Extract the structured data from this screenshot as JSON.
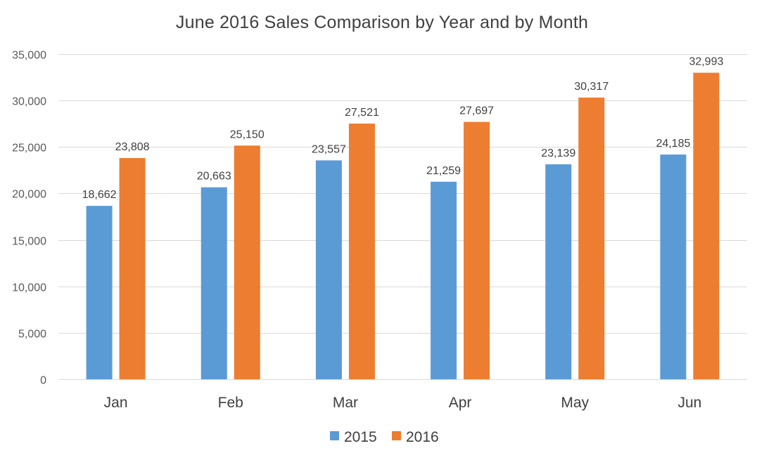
{
  "chart_data": {
    "type": "bar",
    "title": "June 2016 Sales Comparison by Year and by Month",
    "xlabel": "",
    "ylabel": "",
    "categories": [
      "Jan",
      "Feb",
      "Mar",
      "Apr",
      "May",
      "Jun"
    ],
    "series": [
      {
        "name": "2015",
        "color": "#5B9BD5",
        "values": [
          18662,
          20663,
          23557,
          21259,
          23139,
          24185
        ],
        "labels": [
          "18,662",
          "20,663",
          "23,557",
          "21,259",
          "23,139",
          "24,185"
        ]
      },
      {
        "name": "2016",
        "color": "#ED7D31",
        "values": [
          23808,
          25150,
          27521,
          27697,
          30317,
          32993
        ],
        "labels": [
          "23,808",
          "25,150",
          "27,521",
          "27,697",
          "30,317",
          "32,993"
        ]
      }
    ],
    "ylim": [
      0,
      35000
    ],
    "yticks": [
      0,
      5000,
      10000,
      15000,
      20000,
      25000,
      30000,
      35000
    ],
    "ytick_labels": [
      "0",
      "5,000",
      "10,000",
      "15,000",
      "20,000",
      "25,000",
      "30,000",
      "35,000"
    ],
    "grid": true,
    "legend_position": "bottom",
    "gridline_color": "#D9D9D9"
  }
}
